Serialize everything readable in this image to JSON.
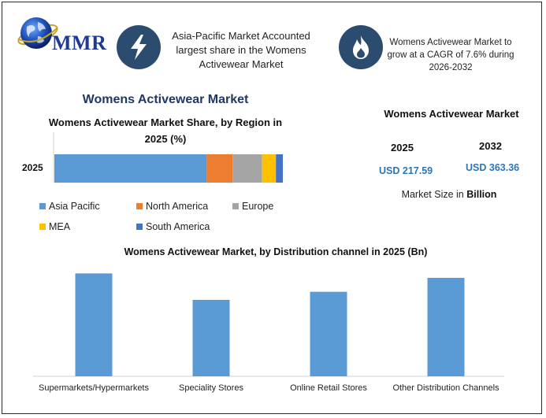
{
  "header": {
    "logo_text": "MMR",
    "info1": "Asia-Pacific Market Accounted largest share in the Womens Activewear Market",
    "info2": "Womens Activewear Market to grow at a CAGR of 7.6% during 2026-2032",
    "info1_icon": "lightning-bolt-icon",
    "info2_icon": "flame-icon"
  },
  "colors": {
    "badge": "#2b4c6f",
    "asia_pacific": "#5b9bd5",
    "north_america": "#ed7d31",
    "europe": "#a5a5a5",
    "mea": "#ffc000",
    "south_america": "#4472c4",
    "bars": "#5b9bd5",
    "usd": "#2e75b6",
    "title": "#1f3864"
  },
  "main_title": "Womens Activewear Market",
  "market_size": {
    "title": "Womens Activewear Market",
    "year1": "2025",
    "value1": "USD 217.59",
    "year2": "2032",
    "value2": "USD 363.36",
    "note_prefix": "Market Size in ",
    "note_bold": "Billion"
  },
  "chart_data": [
    {
      "type": "bar",
      "orientation": "horizontal-stacked",
      "title": "Womens Activewear Market Share, by Region in 2025 (%)",
      "categories": [
        "2025"
      ],
      "series": [
        {
          "name": "Asia Pacific",
          "values": [
            44
          ]
        },
        {
          "name": "North America",
          "values": [
            7.5
          ]
        },
        {
          "name": "Europe",
          "values": [
            8.5
          ]
        },
        {
          "name": "MEA",
          "values": [
            4
          ]
        },
        {
          "name": "South America",
          "values": [
            2
          ]
        }
      ],
      "xlim": [
        0,
        66
      ],
      "legend": "bottom",
      "grid": false
    },
    {
      "type": "bar",
      "title": "Womens Activewear Market, by Distribution channel in 2025 (Bn)",
      "categories": [
        "Supermarkets/Hypermarkets",
        "Speciality Stores",
        "Online Retail Stores",
        "Other Distribution Channels"
      ],
      "values": [
        70,
        52,
        57.5,
        67
      ],
      "ylim": [
        0,
        75
      ],
      "xlabel": "",
      "ylabel": "",
      "grid": false
    }
  ]
}
